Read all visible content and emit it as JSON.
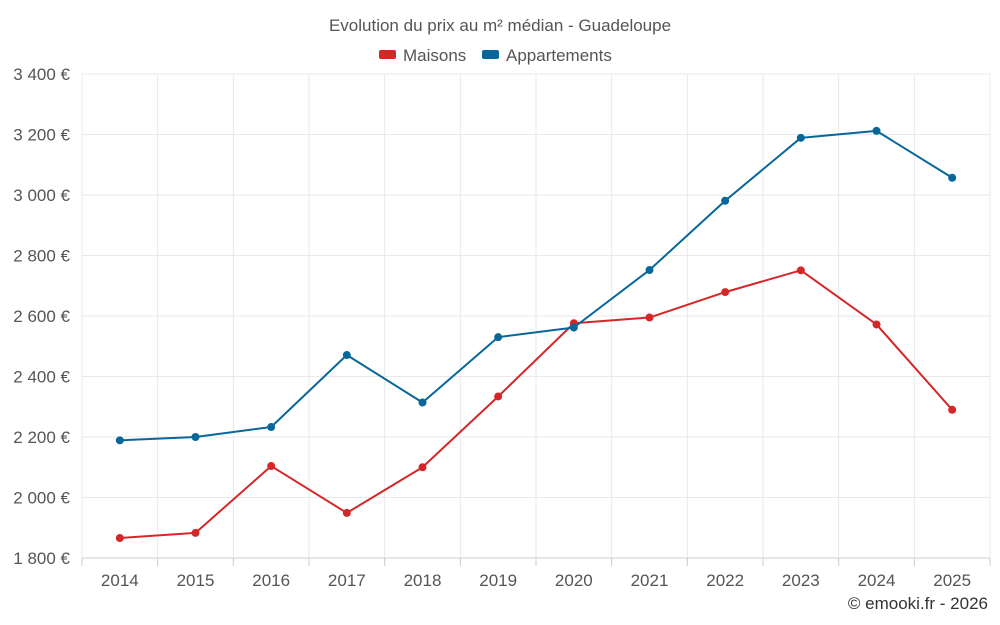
{
  "chart_data": {
    "type": "line",
    "title": "Evolution du prix au m² médian - Guadeloupe",
    "credit": "© emooki.fr - 2026",
    "categories": [
      "2014",
      "2015",
      "2016",
      "2017",
      "2018",
      "2019",
      "2020",
      "2021",
      "2022",
      "2023",
      "2024",
      "2025"
    ],
    "series": [
      {
        "name": "Maisons",
        "color": "#d62728",
        "values": [
          1866,
          1883,
          2104,
          1949,
          2100,
          2334,
          2576,
          2595,
          2679,
          2751,
          2572,
          2290
        ]
      },
      {
        "name": "Appartements",
        "color": "#08679a",
        "values": [
          2189,
          2200,
          2233,
          2471,
          2314,
          2530,
          2562,
          2752,
          2981,
          3189,
          3212,
          3057
        ]
      }
    ],
    "ylim": [
      1800,
      3400
    ],
    "yticks": [
      1800,
      2000,
      2200,
      2400,
      2600,
      2800,
      3000,
      3200,
      3400
    ],
    "ytick_labels": [
      "1 800 €",
      "2 000 €",
      "2 200 €",
      "2 400 €",
      "2 600 €",
      "2 800 €",
      "3 000 €",
      "3 200 €",
      "3 400 €"
    ],
    "xlabel": "",
    "ylabel": "",
    "grid": true,
    "legend_position": "top-center"
  }
}
